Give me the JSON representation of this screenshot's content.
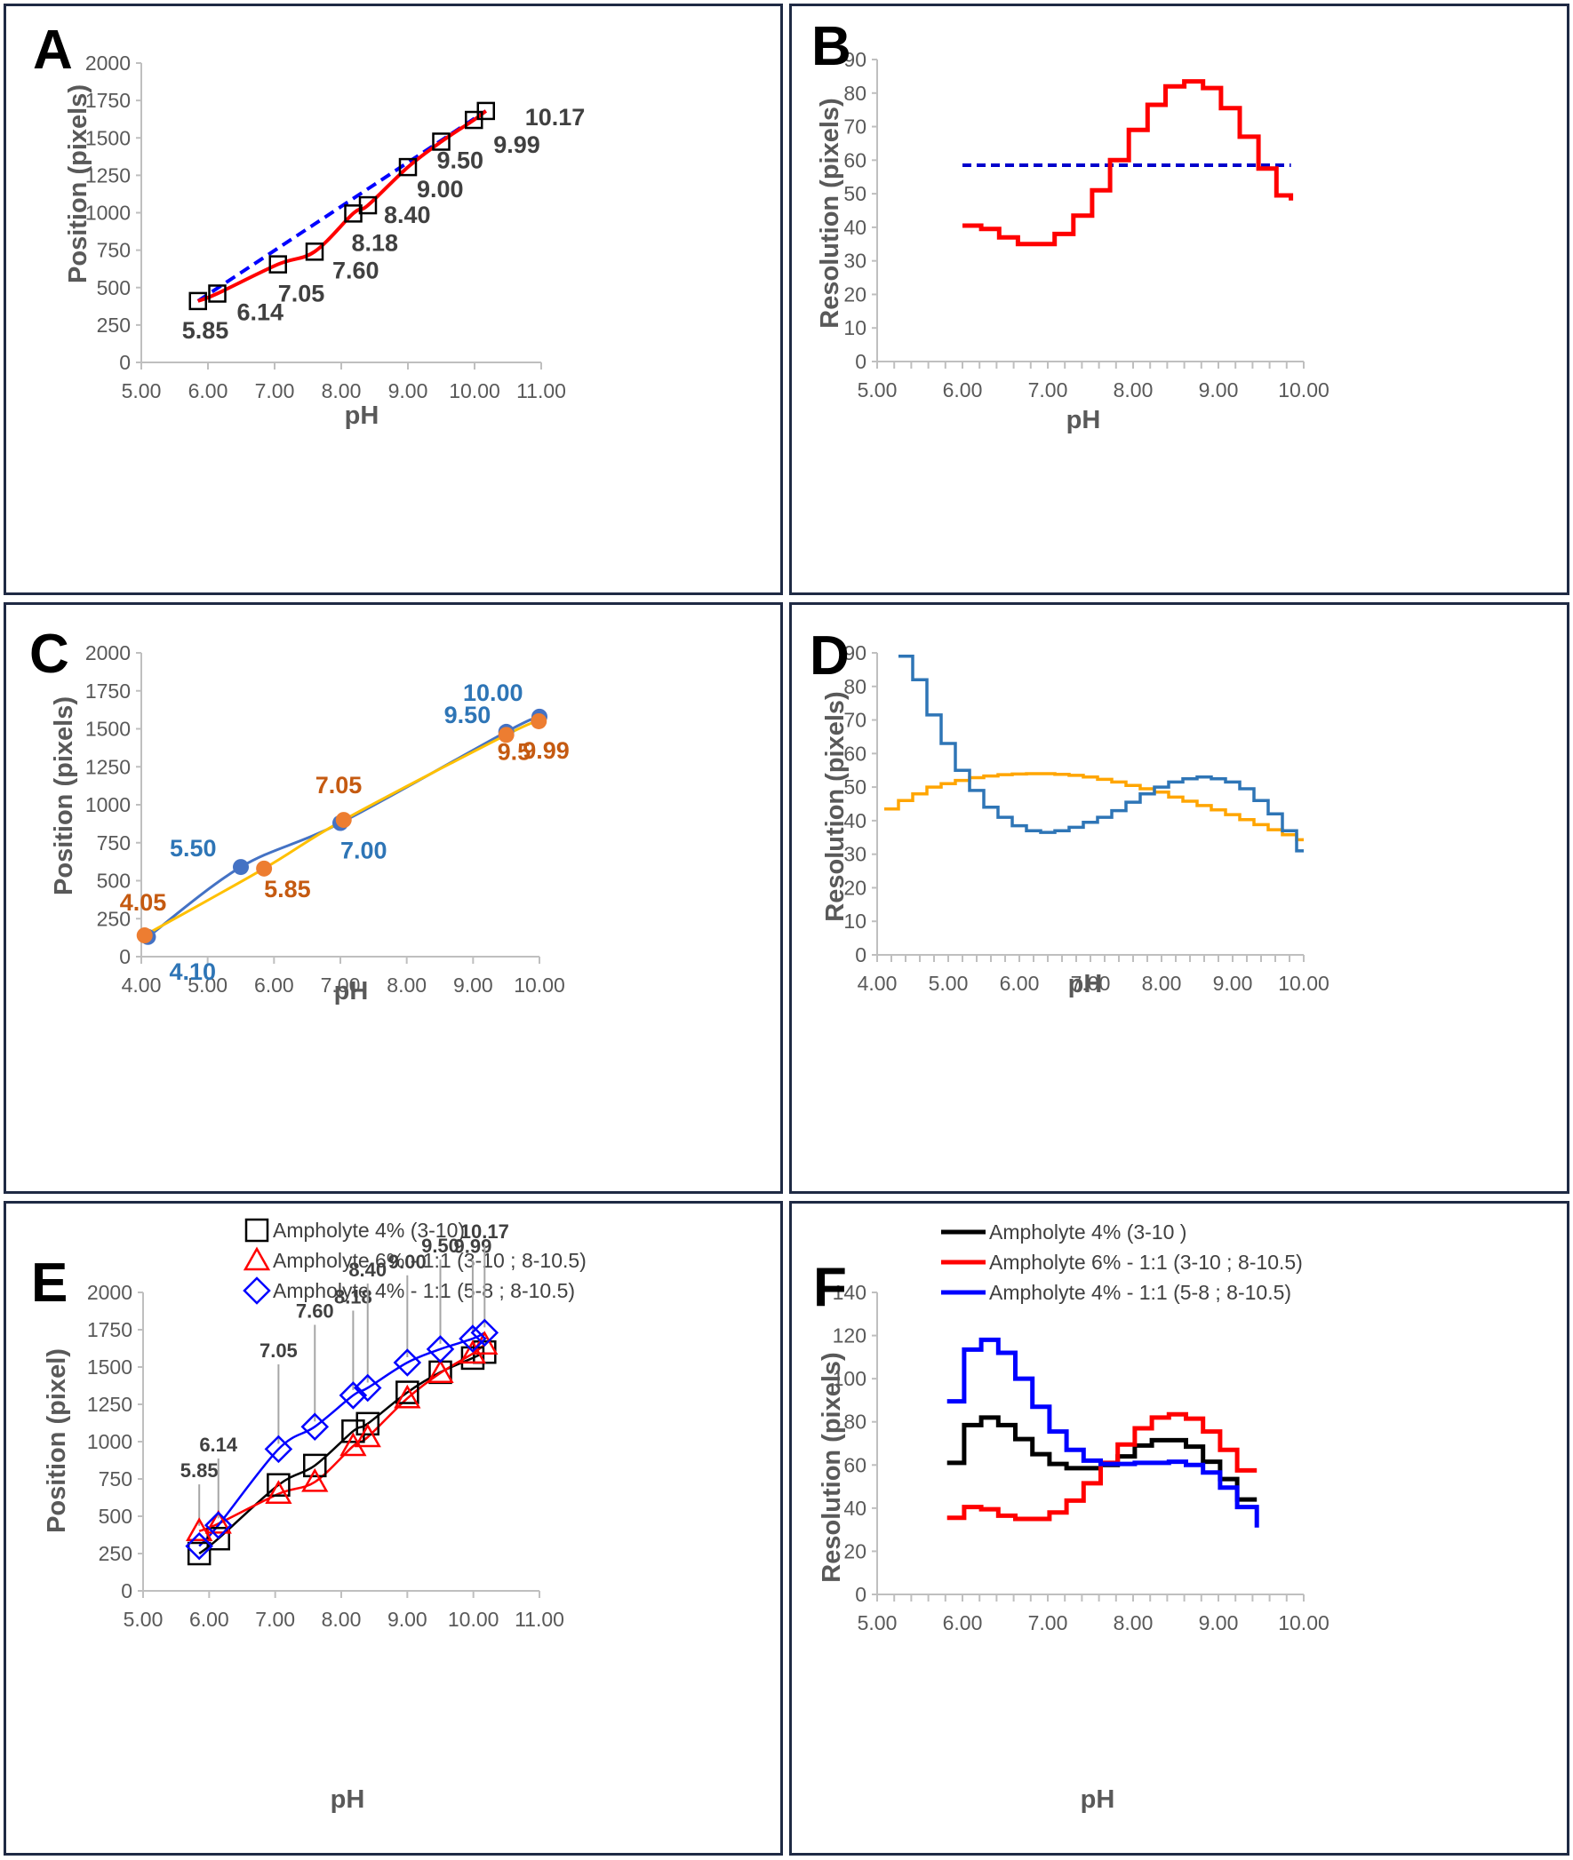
{
  "chart_data": [
    {
      "panel": "A",
      "type": "line",
      "xlabel": "pH",
      "ylabel": "Position (pixels)",
      "xlim": [
        5,
        11
      ],
      "ylim": [
        0,
        2000
      ],
      "xticks": [
        "5.00",
        "6.00",
        "7.00",
        "8.00",
        "9.00",
        "10.00",
        "11.00"
      ],
      "yticks": [
        "0",
        "250",
        "500",
        "750",
        "1000",
        "1250",
        "1500",
        "1750",
        "2000"
      ],
      "series": [
        {
          "name": "markers",
          "style": "square",
          "color": "#000000",
          "x": [
            5.85,
            6.14,
            7.05,
            7.6,
            8.18,
            8.4,
            9.0,
            9.5,
            9.99,
            10.17
          ],
          "y": [
            410,
            460,
            655,
            740,
            995,
            1050,
            1305,
            1475,
            1620,
            1680
          ]
        },
        {
          "name": "smooth",
          "style": "line",
          "color": "#ff0000",
          "x": [
            5.85,
            6.14,
            7.05,
            7.6,
            8.18,
            8.4,
            9.0,
            9.5,
            9.99,
            10.17
          ],
          "y": [
            410,
            460,
            655,
            740,
            995,
            1050,
            1305,
            1475,
            1620,
            1680
          ]
        },
        {
          "name": "linear",
          "style": "dashed",
          "color": "#0000ff",
          "x": [
            5.85,
            10.17
          ],
          "y": [
            410,
            1680
          ]
        }
      ],
      "annotations": [
        "5.85",
        "6.14",
        "7.05",
        "7.60",
        "8.18",
        "8.40",
        "9.00",
        "9.50",
        "9.99",
        "10.17"
      ]
    },
    {
      "panel": "B",
      "type": "line",
      "xlabel": "pH",
      "ylabel": "Resolution (pixels)",
      "xlim": [
        5,
        10
      ],
      "ylim": [
        0,
        90
      ],
      "xticks": [
        "5.00",
        "6.00",
        "7.00",
        "8.00",
        "9.00",
        "10.00"
      ],
      "yticks": [
        "0",
        "10",
        "20",
        "30",
        "40",
        "50",
        "60",
        "70",
        "80",
        "90"
      ],
      "series": [
        {
          "name": "resolution",
          "style": "step",
          "color": "#ff0000",
          "x": [
            6.0,
            6.22,
            6.43,
            6.65,
            6.87,
            7.08,
            7.3,
            7.52,
            7.73,
            7.95,
            8.17,
            8.38,
            8.6,
            8.82,
            9.03,
            9.25,
            9.47,
            9.68,
            9.85
          ],
          "y": [
            40.5,
            39.5,
            37,
            35,
            35,
            38,
            43.5,
            51,
            60,
            69,
            76.5,
            82,
            83.5,
            81.5,
            75.5,
            67,
            57.5,
            49.5,
            48
          ]
        },
        {
          "name": "linear",
          "style": "dashed",
          "color": "#0000cc",
          "x": [
            6.0,
            9.85
          ],
          "y": [
            58.5,
            58.5
          ]
        }
      ]
    },
    {
      "panel": "C",
      "type": "line",
      "xlabel": "pH",
      "ylabel": "Position (pixels)",
      "xlim": [
        4,
        10
      ],
      "ylim": [
        0,
        2000
      ],
      "xticks": [
        "4.00",
        "5.00",
        "6.00",
        "7.00",
        "8.00",
        "9.00",
        "10.00"
      ],
      "yticks": [
        "0",
        "250",
        "500",
        "750",
        "1000",
        "1250",
        "1500",
        "1750",
        "2000"
      ],
      "series": [
        {
          "name": "blue",
          "color": "#4472c4",
          "curve": "#4472c4",
          "x": [
            4.1,
            5.5,
            7.0,
            9.5,
            10.0
          ],
          "y": [
            130,
            590,
            880,
            1480,
            1580
          ]
        },
        {
          "name": "orange",
          "color": "#ed7d31",
          "curve": "#ffc000",
          "x": [
            4.05,
            5.85,
            7.05,
            9.5,
            9.99
          ],
          "y": [
            140,
            580,
            900,
            1460,
            1550
          ]
        }
      ],
      "annotations_blue": [
        "4.10",
        "5.50",
        "7.00",
        "9.50",
        "10.00"
      ],
      "annotations_orange": [
        "4.05",
        "5.85",
        "7.05",
        "9.5",
        "9.99"
      ]
    },
    {
      "panel": "D",
      "type": "line",
      "xlabel": "pH",
      "ylabel": "Resolution (pixels)",
      "xlim": [
        4,
        10
      ],
      "ylim": [
        0,
        90
      ],
      "xticks": [
        "4.00",
        "5.00",
        "6.00",
        "7.00",
        "8.00",
        "9.00",
        "10.00"
      ],
      "yticks": [
        "0",
        "10",
        "20",
        "30",
        "40",
        "50",
        "60",
        "70",
        "80",
        "90"
      ],
      "series": [
        {
          "name": "blue",
          "style": "step",
          "color": "#2e75b6",
          "x": [
            4.3,
            4.5,
            4.7,
            4.9,
            5.1,
            5.3,
            5.5,
            5.7,
            5.9,
            6.1,
            6.3,
            6.5,
            6.7,
            6.9,
            7.1,
            7.3,
            7.5,
            7.7,
            7.9,
            8.1,
            8.3,
            8.5,
            8.7,
            8.9,
            9.1,
            9.3,
            9.5,
            9.7,
            9.9
          ],
          "y": [
            89,
            82,
            71.5,
            63,
            55,
            49,
            44,
            41,
            38.5,
            37,
            36.5,
            37,
            38,
            39.5,
            41,
            43,
            45.5,
            48,
            50,
            51.5,
            52.5,
            53,
            52.5,
            51.5,
            49.5,
            46,
            42,
            37,
            31
          ]
        },
        {
          "name": "orange",
          "style": "step",
          "color": "#ffa500",
          "x": [
            4.1,
            4.3,
            4.5,
            4.7,
            4.9,
            5.1,
            5.3,
            5.5,
            5.7,
            5.9,
            6.1,
            6.3,
            6.5,
            6.7,
            6.9,
            7.1,
            7.3,
            7.5,
            7.7,
            7.9,
            8.1,
            8.3,
            8.5,
            8.7,
            8.9,
            9.1,
            9.3,
            9.5,
            9.7,
            9.9
          ],
          "y": [
            43.5,
            46,
            48,
            50,
            51,
            52,
            52.8,
            53.3,
            53.7,
            53.9,
            54,
            54,
            53.8,
            53.5,
            53,
            52.3,
            51.5,
            50.5,
            49.5,
            48.5,
            47,
            45.8,
            44.5,
            43.2,
            41.8,
            40.3,
            38.8,
            37.3,
            35.8,
            34.3
          ]
        }
      ]
    },
    {
      "panel": "E",
      "type": "scatter",
      "xlabel": "pH",
      "ylabel": "Position (pixel)",
      "xlim": [
        5,
        11
      ],
      "ylim": [
        0,
        2000
      ],
      "xticks": [
        "5.00",
        "6.00",
        "7.00",
        "8.00",
        "9.00",
        "10.00",
        "11.00"
      ],
      "yticks": [
        "0",
        "250",
        "500",
        "750",
        "1000",
        "1250",
        "1500",
        "1750",
        "2000"
      ],
      "legend": [
        "Ampholyte  4% (3-10)",
        "Ampholyte  6% - 1:1 (3-10 ; 8-10.5)",
        "Ampholyte  4% - 1:1 (5-8 ; 8-10.5)"
      ],
      "series": [
        {
          "name": "Ampholyte  4% (3-10)",
          "marker": "square",
          "color": "#000000",
          "x": [
            5.85,
            6.14,
            7.05,
            7.6,
            8.18,
            8.4,
            9.0,
            9.5,
            9.99,
            10.17
          ],
          "y": [
            250,
            350,
            710,
            840,
            1070,
            1120,
            1330,
            1465,
            1560,
            1600
          ]
        },
        {
          "name": "Ampholyte  6% - 1:1 (3-10 ; 8-10.5)",
          "marker": "triangle",
          "color": "#ff0000",
          "x": [
            5.85,
            6.14,
            7.05,
            7.6,
            8.18,
            8.4,
            9.0,
            9.5,
            9.99,
            10.17
          ],
          "y": [
            400,
            450,
            650,
            730,
            970,
            1030,
            1290,
            1460,
            1590,
            1650
          ]
        },
        {
          "name": "Ampholyte  4% - 1:1 (5-8 ; 8-10.5)",
          "marker": "diamond",
          "color": "#0000ff",
          "x": [
            5.85,
            6.14,
            7.05,
            7.6,
            8.18,
            8.4,
            9.0,
            9.5,
            9.99,
            10.17
          ],
          "y": [
            300,
            440,
            950,
            1100,
            1310,
            1360,
            1530,
            1620,
            1690,
            1730
          ]
        }
      ],
      "annotations": [
        "5.85",
        "6.14",
        "7.05",
        "7.60",
        "8.18",
        "8.40",
        "9.00",
        "9.50",
        "9.99",
        "10.17"
      ]
    },
    {
      "panel": "F",
      "type": "line",
      "xlabel": "pH",
      "ylabel": "Resolution (pixels)",
      "xlim": [
        5,
        10
      ],
      "ylim": [
        0,
        140
      ],
      "xticks": [
        "5.00",
        "6.00",
        "7.00",
        "8.00",
        "9.00",
        "10.00"
      ],
      "yticks": [
        "0",
        "20",
        "40",
        "60",
        "80",
        "100",
        "120",
        "140"
      ],
      "legend": [
        "Ampholyte  4% (3-10 )",
        "Ampholyte  6% - 1:1 (3-10 ; 8-10.5)",
        "Ampholyte  4% - 1:1 (5-8 ; 8-10.5)"
      ],
      "series": [
        {
          "name": "Ampholyte  4% (3-10 )",
          "style": "step",
          "color": "#000000",
          "x": [
            5.82,
            6.02,
            6.22,
            6.42,
            6.62,
            6.82,
            7.02,
            7.22,
            7.42,
            7.62,
            7.82,
            8.02,
            8.22,
            8.42,
            8.62,
            8.82,
            9.02,
            9.22,
            9.45
          ],
          "y": [
            61,
            78.5,
            82,
            78.5,
            72,
            65,
            60.5,
            58.5,
            58.5,
            60,
            64,
            69,
            71.5,
            71.5,
            68.5,
            61.5,
            53.5,
            44,
            44
          ]
        },
        {
          "name": "Ampholyte  6% - 1:1 (3-10 ; 8-10.5)",
          "style": "step",
          "color": "#ff0000",
          "x": [
            5.82,
            6.02,
            6.22,
            6.42,
            6.62,
            6.82,
            7.02,
            7.22,
            7.42,
            7.62,
            7.82,
            8.02,
            8.22,
            8.42,
            8.62,
            8.82,
            9.02,
            9.22,
            9.45
          ],
          "y": [
            35.5,
            40.5,
            39.5,
            36.5,
            35,
            35,
            38,
            43.5,
            51.5,
            61,
            69.5,
            77,
            82,
            83.5,
            81.5,
            75.5,
            67,
            57.5,
            57.5
          ]
        },
        {
          "name": "Ampholyte  4% - 1:1 (5-8 ; 8-10.5)",
          "style": "step",
          "color": "#0000ff",
          "x": [
            5.82,
            6.02,
            6.22,
            6.42,
            6.62,
            6.82,
            7.02,
            7.22,
            7.42,
            7.62,
            7.82,
            8.02,
            8.22,
            8.42,
            8.62,
            8.82,
            9.02,
            9.22,
            9.45
          ],
          "y": [
            89.5,
            113.5,
            118,
            112,
            100,
            87,
            75.5,
            67,
            62,
            60.5,
            60.5,
            61,
            61,
            61.5,
            60,
            56.5,
            49.5,
            40.5,
            31
          ]
        }
      ]
    }
  ]
}
